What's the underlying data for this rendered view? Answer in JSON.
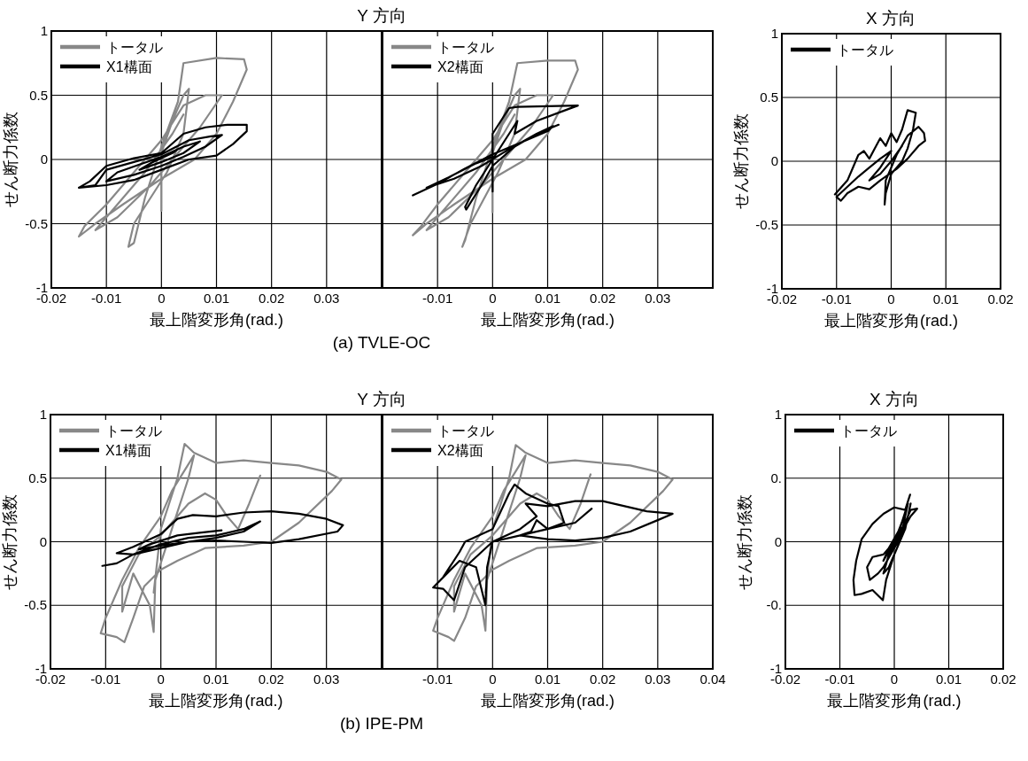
{
  "chart_data": [
    {
      "type": "line",
      "title": "Y 方向",
      "ylabel": "せん断力係数",
      "xlabel": "最上階変形角(rad.)",
      "annotations": [
        "(a) TVLE-OC"
      ],
      "xlim": [
        -0.02,
        0.04
      ],
      "ylim": [
        -1,
        1
      ],
      "xticks": [
        -0.02,
        -0.01,
        0,
        0.01,
        0.02,
        0.03
      ],
      "yticks": [
        -1,
        -0.5,
        0,
        0.5,
        1
      ],
      "grid": true,
      "legend": "top left",
      "series": [
        {
          "name": "トータル",
          "color": "#888888",
          "x": [
            0,
            0,
            0.002,
            0.004,
            0.005,
            0.004,
            0.001,
            -0.005,
            -0.006,
            -0.005,
            -0.003,
            0,
            0.003,
            0.004,
            0.01,
            0.015,
            0.0155,
            0.013,
            0.01,
            0.006,
            0,
            -0.007,
            -0.012,
            -0.015,
            -0.014,
            -0.01,
            -0.005,
            0,
            0.004,
            0.008,
            0.011,
            0.007,
            0.003,
            -0.002,
            -0.008,
            -0.012,
            -0.008,
            -0.003,
            0.002,
            0.004
          ],
          "values": [
            -0.4,
            0.05,
            0.3,
            0.5,
            0.55,
            0.2,
            -0.1,
            -0.5,
            -0.68,
            -0.65,
            -0.3,
            0.1,
            0.45,
            0.75,
            0.79,
            0.78,
            0.7,
            0.45,
            0.2,
            0,
            -0.15,
            -0.35,
            -0.5,
            -0.6,
            -0.52,
            -0.35,
            -0.1,
            0.15,
            0.42,
            0.5,
            0.5,
            0.25,
            0.05,
            -0.2,
            -0.45,
            -0.55,
            -0.35,
            -0.1,
            0.2,
            0.35
          ]
        },
        {
          "name": "X1構面",
          "color": "#000000",
          "x": [
            -0.015,
            -0.013,
            -0.01,
            -0.005,
            0,
            0.004,
            0.008,
            0.012,
            0.0155,
            0.0155,
            0.013,
            0.01,
            0.005,
            0,
            -0.005,
            -0.01,
            -0.015,
            -0.012,
            -0.01,
            -0.005,
            0,
            0.005,
            0.009,
            0.011,
            0.008,
            0.004,
            0,
            -0.005,
            -0.01,
            -0.008,
            -0.004,
            0,
            0.004,
            0.007,
            0.004,
            0,
            -0.004,
            -0.002,
            0.002,
            0.003
          ],
          "values": [
            -0.22,
            -0.17,
            -0.05,
            0.01,
            0.05,
            0.2,
            0.25,
            0.27,
            0.27,
            0.22,
            0.12,
            0.03,
            0,
            -0.08,
            -0.16,
            -0.2,
            -0.22,
            -0.2,
            -0.08,
            -0.02,
            0.04,
            0.15,
            0.18,
            0.19,
            0.1,
            0.02,
            -0.05,
            -0.12,
            -0.17,
            -0.1,
            -0.04,
            0.02,
            0.1,
            0.14,
            0.05,
            -0.02,
            -0.08,
            -0.03,
            0.05,
            0.08
          ]
        }
      ]
    },
    {
      "type": "line",
      "xlabel": "最上階変形角(rad.)",
      "xlim": [
        -0.02,
        0.04
      ],
      "ylim": [
        -1,
        1
      ],
      "xticks": [
        -0.01,
        0,
        0.01,
        0.02,
        0.03
      ],
      "yticks": [
        -1,
        -0.5,
        0,
        0.5,
        1
      ],
      "grid": true,
      "legend": "top left",
      "tick_labels": "x",
      "series": [
        {
          "name": "トータル",
          "color": "#888888",
          "x": [
            0,
            0,
            0.002,
            0.004,
            0.005,
            0.004,
            0.001,
            -0.004,
            -0.0055,
            -0.005,
            -0.003,
            0,
            0.003,
            0.0045,
            0.01,
            0.015,
            0.0155,
            0.013,
            0.01,
            0.006,
            0,
            -0.007,
            -0.012,
            -0.0145,
            -0.013,
            -0.01,
            -0.005,
            0,
            0.004,
            0.008,
            0.011,
            0.007,
            0.003,
            -0.002,
            -0.008,
            -0.012,
            -0.008,
            -0.003,
            0.002,
            0.004
          ],
          "values": [
            -0.41,
            0.05,
            0.3,
            0.5,
            0.55,
            0.2,
            -0.1,
            -0.5,
            -0.68,
            -0.63,
            -0.3,
            0.1,
            0.45,
            0.75,
            0.77,
            0.77,
            0.7,
            0.45,
            0.2,
            0,
            -0.15,
            -0.35,
            -0.5,
            -0.59,
            -0.52,
            -0.35,
            -0.1,
            0.15,
            0.42,
            0.5,
            0.5,
            0.25,
            0.05,
            -0.2,
            -0.45,
            -0.55,
            -0.35,
            -0.1,
            0.2,
            0.35
          ]
        },
        {
          "name": "X2構面",
          "color": "#000000",
          "x": [
            -0.0145,
            -0.01,
            -0.005,
            0,
            0.005,
            0.01,
            0.011,
            0.008,
            0.003,
            -0.002,
            -0.007,
            -0.012,
            -0.008,
            -0.003,
            0,
            0,
            0,
            0.003,
            0.0045,
            0.0155,
            0.013,
            0.008,
            0.004,
            0.0045,
            0.003,
            0,
            -0.003,
            -0.005,
            -0.0048,
            -0.002,
            0,
            0.004,
            0.008,
            0.012
          ],
          "values": [
            -0.28,
            -0.19,
            -0.07,
            0.04,
            0.13,
            0.22,
            0.26,
            0.2,
            0.08,
            -0.05,
            -0.15,
            -0.22,
            -0.14,
            -0.03,
            0.02,
            -0.25,
            0.2,
            0.4,
            0.41,
            0.42,
            0.38,
            0.3,
            0.2,
            0.3,
            0.2,
            0,
            -0.2,
            -0.37,
            -0.39,
            -0.2,
            -0.05,
            0.1,
            0.2,
            0.27
          ]
        }
      ]
    },
    {
      "type": "line",
      "title": "X 方向",
      "ylabel": "せん断力係数",
      "xlabel": "最上階変形角(rad.)",
      "xlim": [
        -0.02,
        0.02
      ],
      "ylim": [
        -1,
        1
      ],
      "xticks": [
        -0.02,
        -0.01,
        0,
        0.01,
        0.02
      ],
      "yticks": [
        -1,
        -0.5,
        0,
        0.5,
        1
      ],
      "grid": true,
      "legend": "top left",
      "series": [
        {
          "name": "トータル",
          "color": "#000000",
          "x": [
            -0.0103,
            -0.008,
            -0.007,
            -0.006,
            -0.005,
            -0.004,
            -0.003,
            -0.002,
            -0.001,
            0,
            0.001,
            0.002,
            0.003,
            0.0045,
            0.004,
            0.003,
            0.002,
            0,
            -0.001,
            -0.0012,
            -0.001,
            0.001,
            0.003,
            0.005,
            0.006,
            0.0062,
            0.005,
            0.003,
            0.001,
            -0.002,
            -0.004,
            -0.006,
            -0.008,
            -0.0092,
            -0.01,
            -0.006,
            -0.004,
            -0.002,
            0,
            -0.002,
            -0.004,
            -0.002,
            0,
            0.002
          ],
          "values": [
            -0.26,
            -0.15,
            -0.05,
            0.05,
            0.08,
            0.02,
            0.1,
            0.18,
            0.12,
            0.22,
            0.15,
            0.25,
            0.4,
            0.38,
            0.25,
            0.1,
            0,
            -0.1,
            -0.25,
            -0.34,
            -0.15,
            0.05,
            0.2,
            0.27,
            0.22,
            0.16,
            0.12,
            0.02,
            -0.06,
            -0.15,
            -0.22,
            -0.2,
            -0.25,
            -0.31,
            -0.28,
            -0.12,
            -0.05,
            0.02,
            0.08,
            -0.05,
            -0.15,
            -0.1,
            0,
            0.12
          ]
        }
      ]
    },
    {
      "type": "line",
      "title": "Y 方向",
      "ylabel": "せん断力係数",
      "xlabel": "最上階変形角(rad.)",
      "annotations": [
        "(b) IPE-PM"
      ],
      "xlim": [
        -0.02,
        0.04
      ],
      "ylim": [
        -1,
        1
      ],
      "xticks": [
        -0.02,
        -0.01,
        0,
        0.01,
        0.02,
        0.03
      ],
      "yticks": [
        -1,
        -0.5,
        0,
        0.5,
        1
      ],
      "grid": true,
      "legend": "top left",
      "series": [
        {
          "name": "トータル",
          "color": "#888888",
          "x": [
            -0.0013,
            0,
            0.003,
            0.0043,
            0.006,
            0.01,
            0.015,
            0.02,
            0.025,
            0.03,
            0.0327,
            0.031,
            0.025,
            0.02,
            0.015,
            0.008,
            0.003,
            0,
            -0.003,
            -0.005,
            -0.0066,
            -0.008,
            -0.0109,
            -0.01,
            -0.007,
            -0.004,
            0,
            0.002,
            0.006,
            0.005,
            0.002,
            -0.001,
            -0.0013,
            -0.002,
            -0.005,
            -0.007,
            -0.007,
            -0.004,
            0,
            0.005,
            0.008,
            0.01,
            0.012,
            0.014,
            0.016,
            0.018
          ],
          "values": [
            -0.4,
            0.1,
            0.5,
            0.77,
            0.7,
            0.62,
            0.64,
            0.62,
            0.6,
            0.55,
            0.49,
            0.4,
            0.15,
            0,
            -0.03,
            -0.05,
            -0.15,
            -0.22,
            -0.35,
            -0.6,
            -0.79,
            -0.75,
            -0.72,
            -0.6,
            -0.3,
            -0.05,
            0.2,
            0.4,
            0.68,
            0.5,
            0.1,
            -0.3,
            -0.71,
            -0.5,
            -0.25,
            -0.55,
            -0.35,
            -0.1,
            0.05,
            0.3,
            0.38,
            0.33,
            0.2,
            0.1,
            0.3,
            0.52
          ]
        },
        {
          "name": "X1構面",
          "color": "#000000",
          "x": [
            -0.0106,
            -0.008,
            -0.005,
            0,
            0.005,
            0.01,
            0.015,
            0.018,
            0.015,
            0.01,
            0.005,
            0,
            -0.005,
            -0.008,
            -0.005,
            0,
            0.003,
            0.0058,
            0.01,
            0.015,
            0.02,
            0.025,
            0.03,
            0.033,
            0.032,
            0.025,
            0.02,
            0.015,
            0.01,
            0.005,
            0,
            -0.004,
            -0.002,
            0.003,
            0.007,
            0.011
          ],
          "values": [
            -0.19,
            -0.17,
            -0.1,
            -0.02,
            0.03,
            0.05,
            0.1,
            0.16,
            0.08,
            0.03,
            0,
            -0.05,
            -0.1,
            -0.09,
            -0.04,
            0.06,
            0.18,
            0.21,
            0.2,
            0.23,
            0.24,
            0.22,
            0.18,
            0.13,
            0.08,
            0.02,
            -0.01,
            0,
            0.01,
            0,
            -0.03,
            -0.06,
            -0.02,
            0.05,
            0.07,
            0.09
          ]
        }
      ]
    },
    {
      "type": "line",
      "xlabel": "最上階変形角(rad.)",
      "xlim": [
        -0.02,
        0.04
      ],
      "ylim": [
        -1,
        1
      ],
      "xticks": [
        -0.01,
        0,
        0.01,
        0.02,
        0.03,
        0.04
      ],
      "yticks": [
        -1,
        -0.5,
        0,
        0.5,
        1
      ],
      "grid": true,
      "legend": "top left",
      "tick_labels": "x",
      "series": [
        {
          "name": "トータル",
          "color": "#888888",
          "x": [
            -0.0013,
            0,
            0.003,
            0.0042,
            0.006,
            0.01,
            0.015,
            0.02,
            0.025,
            0.03,
            0.0327,
            0.031,
            0.025,
            0.02,
            0.015,
            0.008,
            0.003,
            0,
            -0.003,
            -0.005,
            -0.007,
            -0.008,
            -0.0108,
            -0.01,
            -0.007,
            -0.004,
            0,
            0.002,
            0.006,
            0.005,
            0.002,
            -0.001,
            -0.0013,
            -0.002,
            -0.005,
            -0.007,
            -0.007,
            -0.004,
            0,
            0.005,
            0.008,
            0.01,
            0.012,
            0.014,
            0.016,
            0.0178
          ],
          "values": [
            -0.4,
            0.1,
            0.5,
            0.76,
            0.7,
            0.62,
            0.64,
            0.62,
            0.6,
            0.55,
            0.49,
            0.4,
            0.15,
            0,
            -0.03,
            -0.05,
            -0.15,
            -0.22,
            -0.35,
            -0.6,
            -0.78,
            -0.75,
            -0.7,
            -0.6,
            -0.3,
            -0.05,
            0.2,
            0.4,
            0.68,
            0.5,
            0.1,
            -0.3,
            -0.7,
            -0.5,
            -0.25,
            -0.55,
            -0.35,
            -0.1,
            0.05,
            0.3,
            0.38,
            0.33,
            0.2,
            0.1,
            0.3,
            0.53
          ]
        },
        {
          "name": "X2構面",
          "color": "#000000",
          "x": [
            -0.0108,
            -0.009,
            -0.006,
            -0.005,
            0,
            0.003,
            0.004,
            0.006,
            0.01,
            0.012,
            0.013,
            0.01,
            0.008,
            0.007,
            0.005,
            0.01,
            0.015,
            0.02,
            0.025,
            0.03,
            0.0327,
            0.028,
            0.02,
            0.015,
            0.01,
            0.006,
            0.008,
            0.005,
            0,
            -0.005,
            -0.007,
            -0.009,
            -0.0108,
            -0.006,
            -0.003,
            -0.0013,
            -0.001,
            0,
            0.005,
            0.01,
            0.015,
            0.018
          ],
          "values": [
            -0.36,
            -0.28,
            -0.08,
            0,
            0.1,
            0.38,
            0.45,
            0.38,
            0.3,
            0.28,
            0.15,
            0.1,
            0.17,
            0.08,
            0.05,
            0.02,
            0.01,
            0.03,
            0.08,
            0.17,
            0.22,
            0.24,
            0.32,
            0.32,
            0.28,
            0.3,
            0.2,
            0.1,
            0,
            -0.2,
            -0.46,
            -0.37,
            -0.36,
            -0.15,
            -0.2,
            -0.5,
            -0.2,
            0,
            0.05,
            0.1,
            0.15,
            0.26
          ]
        }
      ]
    },
    {
      "type": "line",
      "title": "X 方向",
      "ylabel": "せん断力係数",
      "xlabel": "最上階変形角(rad.)",
      "xlim": [
        -0.02,
        0.02
      ],
      "ylim": [
        -1,
        1
      ],
      "xticks": [
        -0.02,
        -0.01,
        0,
        0.01,
        0.02
      ],
      "yticks": [
        -1,
        {
          "value": -0.5,
          "label": "-0."
        },
        0,
        {
          "value": 0.5,
          "label": "0."
        },
        1
      ],
      "grid": true,
      "legend": "top left",
      "series": [
        {
          "name": "トータル",
          "color": "#000000",
          "x": [
            0.0029,
            0.002,
            0,
            -0.002,
            -0.004,
            -0.006,
            -0.007,
            -0.0075,
            -0.0073,
            -0.006,
            -0.004,
            -0.0021,
            -0.0015,
            0,
            0.002,
            0.003,
            0.002,
            0,
            -0.002,
            -0.003,
            -0.0045,
            -0.005,
            -0.004,
            -0.002,
            0,
            0.002,
            0.003,
            0.0042,
            0.003,
            0.001,
            -0.001,
            -0.002,
            -0.001,
            0.001,
            0.002,
            0.0025,
            0.001,
            -0.001,
            -0.002,
            0,
            0.002
          ],
          "values": [
            0.37,
            0.25,
            0.27,
            0.22,
            0.14,
            0.02,
            -0.15,
            -0.3,
            -0.42,
            -0.41,
            -0.38,
            -0.46,
            -0.3,
            -0.1,
            0.1,
            0.3,
            0.1,
            -0.05,
            -0.2,
            -0.25,
            -0.3,
            -0.2,
            -0.12,
            -0.1,
            0,
            0.15,
            0.25,
            0.26,
            0.2,
            0.05,
            -0.1,
            -0.25,
            -0.2,
            0,
            0.2,
            0.3,
            0.1,
            -0.05,
            -0.15,
            0,
            0.22
          ]
        }
      ]
    }
  ]
}
